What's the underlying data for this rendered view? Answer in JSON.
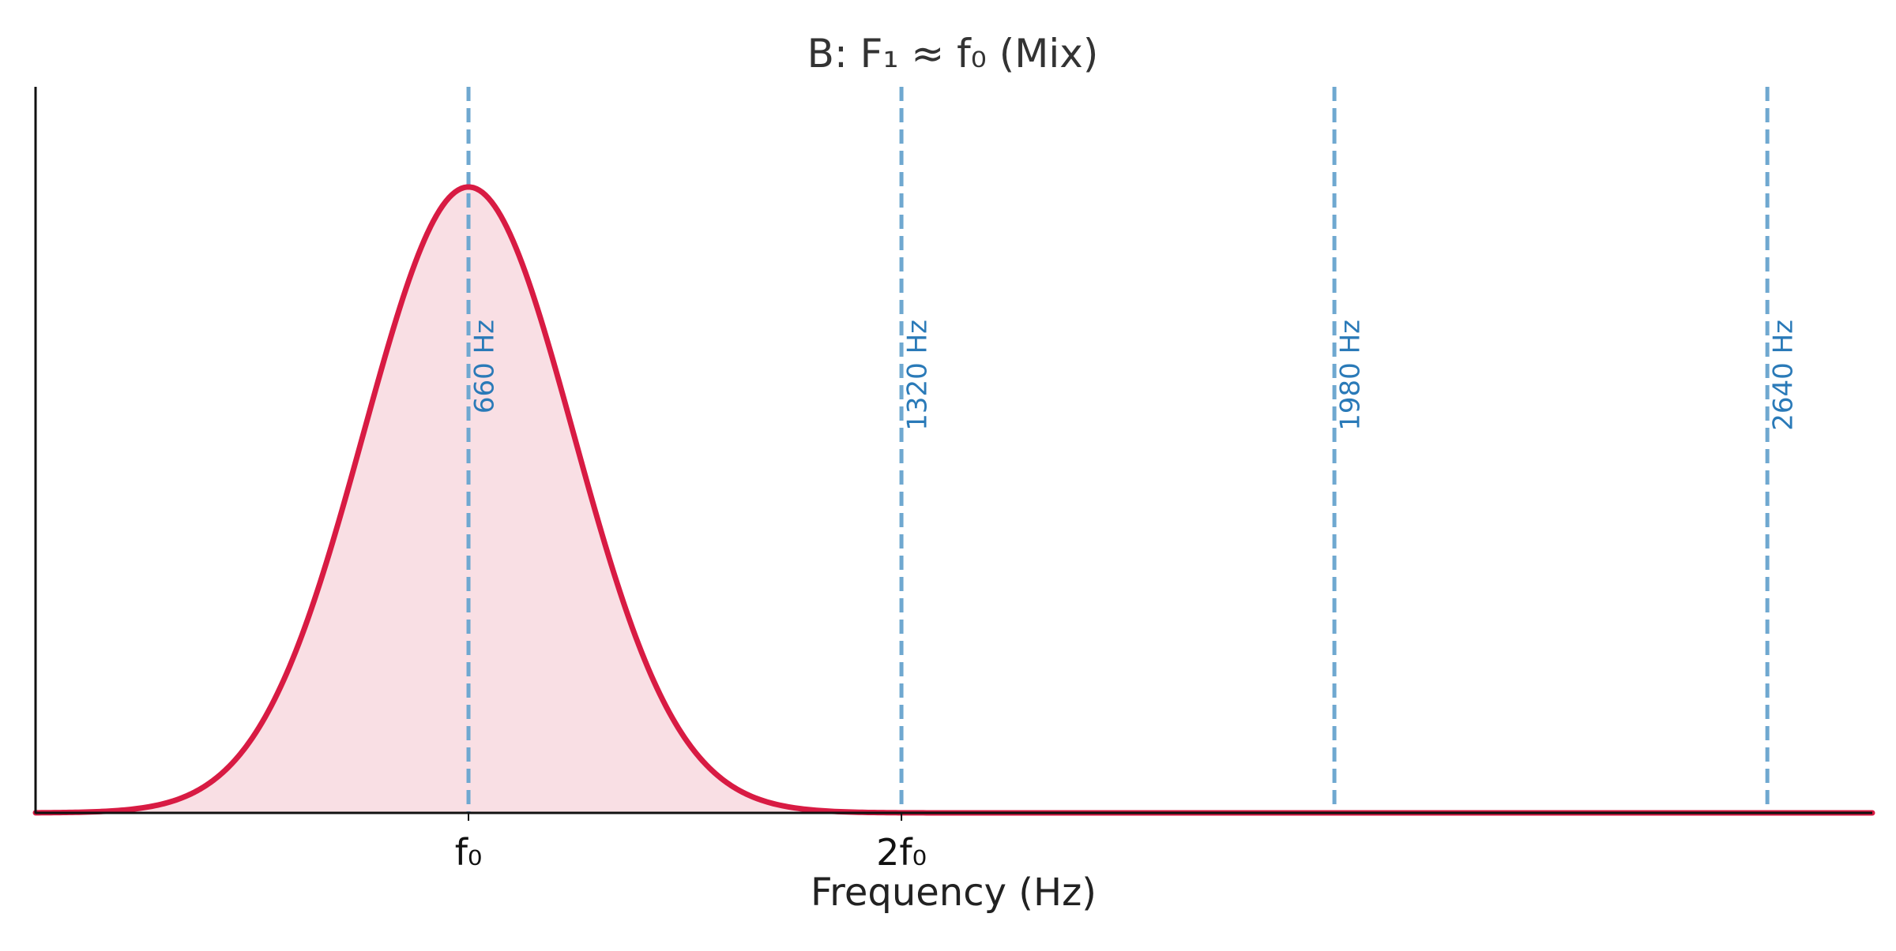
{
  "chart_data": {
    "type": "area",
    "title": "B: F₁ ≈ f₀ (Mix)",
    "xlabel": "Frequency (Hz)",
    "ylabel": "",
    "xlim": [
      0,
      2800
    ],
    "ylim": [
      0,
      1.16
    ],
    "grid": false,
    "envelope": {
      "center": 660,
      "bandwidth_sigma": 160,
      "peak": 1.0,
      "color": "#d81b43",
      "fill_color": "#f9dfe4"
    },
    "harmonics": {
      "color": "#6fa8d0",
      "label_color": "#2a7ab8",
      "frequencies": [
        660,
        1320,
        1980,
        2640
      ],
      "labels": [
        "660 Hz",
        "1320 Hz",
        "1980 Hz",
        "2640 Hz"
      ]
    },
    "x_ticks": [
      {
        "value": 660,
        "label": "f₀"
      },
      {
        "value": 1320,
        "label": "2f₀"
      }
    ]
  }
}
